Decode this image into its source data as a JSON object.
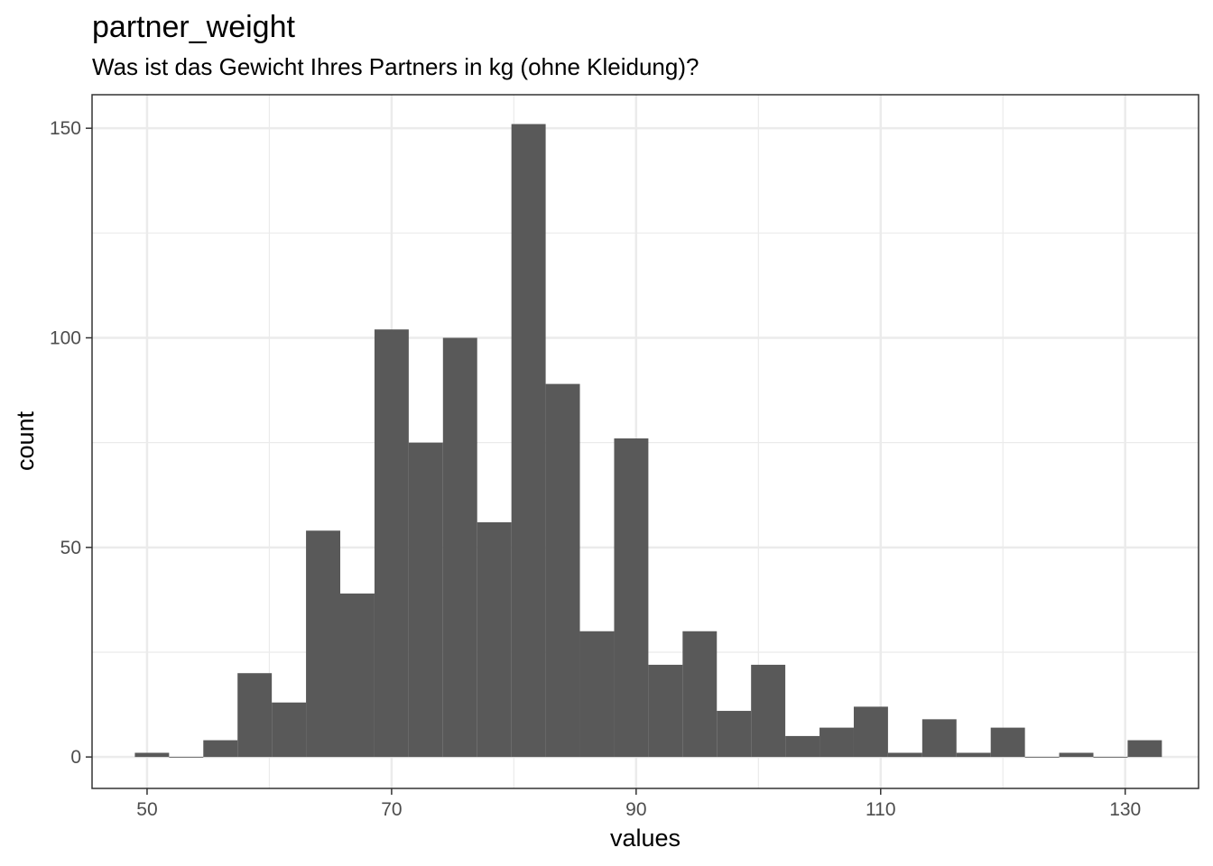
{
  "chart_data": {
    "type": "bar",
    "title": "partner_weight",
    "subtitle": "Was ist das Gewicht Ihres Partners in kg (ohne Kleidung)?",
    "xlabel": "values",
    "ylabel": "count",
    "xlim": [
      45.5,
      136
    ],
    "ylim": [
      -7.5,
      158
    ],
    "x_ticks": [
      50,
      70,
      90,
      110,
      130
    ],
    "y_ticks": [
      0,
      50,
      100,
      150
    ],
    "bin_width": 2.8,
    "bins": [
      {
        "start": 49.0,
        "count": 1
      },
      {
        "start": 51.8,
        "count": 0
      },
      {
        "start": 54.6,
        "count": 4
      },
      {
        "start": 57.4,
        "count": 20
      },
      {
        "start": 60.2,
        "count": 13
      },
      {
        "start": 63.0,
        "count": 54
      },
      {
        "start": 65.8,
        "count": 39
      },
      {
        "start": 68.6,
        "count": 102
      },
      {
        "start": 71.4,
        "count": 75
      },
      {
        "start": 74.2,
        "count": 100
      },
      {
        "start": 77.0,
        "count": 56
      },
      {
        "start": 79.8,
        "count": 151
      },
      {
        "start": 82.6,
        "count": 89
      },
      {
        "start": 85.4,
        "count": 30
      },
      {
        "start": 88.2,
        "count": 76
      },
      {
        "start": 91.0,
        "count": 22
      },
      {
        "start": 93.8,
        "count": 30
      },
      {
        "start": 96.6,
        "count": 11
      },
      {
        "start": 99.4,
        "count": 22
      },
      {
        "start": 102.2,
        "count": 5
      },
      {
        "start": 105.0,
        "count": 7
      },
      {
        "start": 107.8,
        "count": 12
      },
      {
        "start": 110.6,
        "count": 1
      },
      {
        "start": 113.4,
        "count": 9
      },
      {
        "start": 116.2,
        "count": 1
      },
      {
        "start": 119.0,
        "count": 7
      },
      {
        "start": 121.8,
        "count": 0
      },
      {
        "start": 124.6,
        "count": 1
      },
      {
        "start": 127.4,
        "count": 0
      },
      {
        "start": 130.2,
        "count": 4
      }
    ],
    "grid": true,
    "bar_color": "#595959",
    "grid_color": "#ebebeb",
    "panel_border_color": "#333333"
  }
}
